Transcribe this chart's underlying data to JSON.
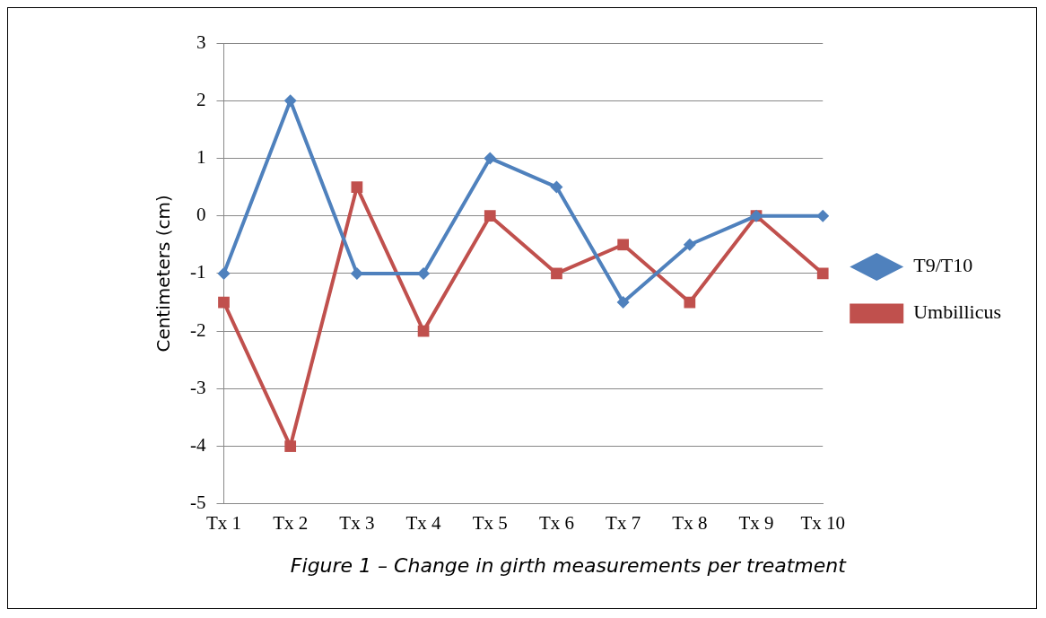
{
  "chart_data": {
    "type": "line",
    "ylabel": "Centimeters (cm)",
    "categories": [
      "Tx 1",
      "Tx 2",
      "Tx 3",
      "Tx 4",
      "Tx 5",
      "Tx 6",
      "Tx 7",
      "Tx 8",
      "Tx 9",
      "Tx 10"
    ],
    "series": [
      {
        "name": "T9/T10",
        "color": "#4f81bd",
        "marker": "diamond",
        "values": [
          -1,
          2,
          -1,
          -1,
          1,
          0.5,
          -1.5,
          -0.5,
          0,
          0
        ]
      },
      {
        "name": "Umbillicus",
        "color": "#c0504d",
        "marker": "square",
        "values": [
          -1.5,
          -4,
          0.5,
          -2,
          0,
          -1,
          -0.5,
          -1.5,
          0,
          -1
        ]
      }
    ],
    "ylim": [
      -5,
      3
    ],
    "yticks": [
      -5,
      -4,
      -3,
      -2,
      -1,
      0,
      1,
      2,
      3
    ],
    "grid": "y",
    "legend": "right",
    "line_style": "solid",
    "annotations": [
      "Figure 1 – Change in girth measurements per treatment"
    ]
  }
}
